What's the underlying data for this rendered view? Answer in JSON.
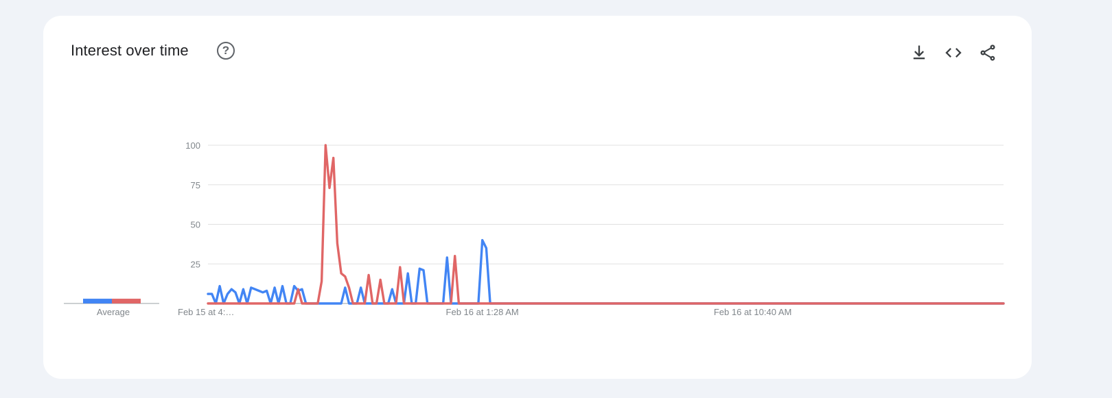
{
  "header": {
    "title": "Interest over time",
    "help_icon": "help-circle-icon",
    "actions": [
      "download-icon",
      "embed-code-icon",
      "share-icon"
    ]
  },
  "chart_data": {
    "type": "line",
    "ylim": [
      0,
      100
    ],
    "yticks": [
      25,
      50,
      75,
      100
    ],
    "xtick_labels": [
      {
        "index": 0,
        "label": "Feb 15 at 4:…"
      },
      {
        "index": 70,
        "label": "Feb 16 at 1:28 AM"
      },
      {
        "index": 139,
        "label": "Feb 16 at 10:40 AM"
      }
    ],
    "grid": true,
    "average_label": "Average",
    "series": [
      {
        "color": "#4285f4",
        "average": 3,
        "values": [
          6,
          6,
          0,
          11,
          0,
          6,
          9,
          7,
          0,
          9,
          0,
          10,
          9,
          8,
          7,
          8,
          0,
          10,
          0,
          11,
          0,
          0,
          11,
          8,
          9,
          0,
          0,
          0,
          0,
          0,
          0,
          0,
          0,
          0,
          0,
          10,
          0,
          0,
          0,
          10,
          0,
          0,
          0,
          0,
          0,
          0,
          0,
          9,
          0,
          0,
          0,
          19,
          0,
          0,
          22,
          21,
          0,
          0,
          0,
          0,
          0,
          29,
          0,
          0,
          0,
          0,
          0,
          0,
          0,
          0,
          40,
          35,
          0,
          0,
          0,
          0,
          0,
          0,
          0,
          0,
          0,
          0,
          0,
          0,
          0,
          0,
          0,
          0,
          0,
          0,
          0,
          0,
          0,
          0,
          0,
          0,
          0,
          0,
          0,
          0,
          0,
          0,
          0,
          0,
          0,
          0,
          0,
          0,
          0,
          0,
          0,
          0,
          0,
          0,
          0,
          0,
          0,
          0,
          0,
          0,
          0,
          0,
          0,
          0,
          0,
          0,
          0,
          0,
          0,
          0,
          0,
          0,
          0,
          0,
          0,
          0,
          0,
          0,
          0,
          0,
          0,
          0,
          0,
          0,
          0,
          0,
          0,
          0,
          0,
          0,
          0,
          0,
          0,
          0,
          0,
          0,
          0,
          0,
          0,
          0,
          0,
          0,
          0,
          0,
          0,
          0,
          0,
          0,
          0,
          0,
          0,
          0,
          0,
          0,
          0,
          0,
          0,
          0,
          0,
          0,
          0,
          0,
          0,
          0,
          0,
          0,
          0,
          0,
          0,
          0,
          0,
          0,
          0,
          0,
          0,
          0,
          0,
          0,
          0,
          0,
          0,
          0,
          0,
          0
        ]
      },
      {
        "color": "#e06666",
        "average": 3,
        "values": [
          0,
          0,
          0,
          0,
          0,
          0,
          0,
          0,
          0,
          0,
          0,
          0,
          0,
          0,
          0,
          0,
          0,
          0,
          0,
          0,
          0,
          0,
          0,
          9,
          0,
          0,
          0,
          0,
          0,
          14,
          100,
          73,
          92,
          38,
          19,
          17,
          10,
          0,
          0,
          0,
          0,
          18,
          0,
          0,
          15,
          0,
          0,
          0,
          0,
          23,
          0,
          0,
          0,
          0,
          0,
          0,
          0,
          0,
          0,
          0,
          0,
          0,
          0,
          30,
          0,
          0,
          0,
          0,
          0,
          0,
          0,
          0,
          0,
          0,
          0,
          0,
          0,
          0,
          0,
          0,
          0,
          0,
          0,
          0,
          0,
          0,
          0,
          0,
          0,
          0,
          0,
          0,
          0,
          0,
          0,
          0,
          0,
          0,
          0,
          0,
          0,
          0,
          0,
          0,
          0,
          0,
          0,
          0,
          0,
          0,
          0,
          0,
          0,
          0,
          0,
          0,
          0,
          0,
          0,
          0,
          0,
          0,
          0,
          0,
          0,
          0,
          0,
          0,
          0,
          0,
          0,
          0,
          0,
          0,
          0,
          0,
          0,
          0,
          0,
          0,
          0,
          0,
          0,
          0,
          0,
          0,
          0,
          0,
          0,
          0,
          0,
          0,
          0,
          0,
          0,
          0,
          0,
          0,
          0,
          0,
          0,
          0,
          0,
          0,
          0,
          0,
          0,
          0,
          0,
          0,
          0,
          0,
          0,
          0,
          0,
          0,
          0,
          0,
          0,
          0,
          0,
          0,
          0,
          0,
          0,
          0,
          0,
          0,
          0,
          0,
          0,
          0,
          0,
          0,
          0,
          0,
          0,
          0,
          0,
          0,
          0,
          0,
          0,
          0
        ]
      }
    ]
  }
}
